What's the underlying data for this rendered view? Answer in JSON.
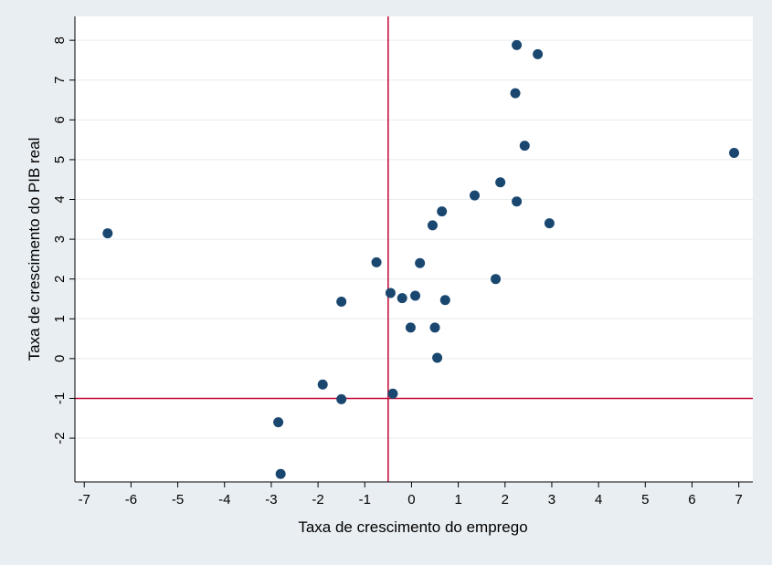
{
  "chart_data": {
    "type": "scatter",
    "title": "",
    "xlabel": "Taxa de crescimento do emprego",
    "ylabel": "Taxa de crescimento do PIB real",
    "xlim": [
      -7.2,
      7.3
    ],
    "ylim": [
      -3.1,
      8.6
    ],
    "xticks": [
      -7,
      -6,
      -5,
      -4,
      -3,
      -2,
      -1,
      0,
      1,
      2,
      3,
      4,
      5,
      6,
      7
    ],
    "yticks": [
      -2,
      -1,
      0,
      1,
      2,
      3,
      4,
      5,
      6,
      7,
      8
    ],
    "grid": "horizontal",
    "point_color": "#1a476f",
    "reference_line_color": "#c10534",
    "reference_lines": {
      "x": -0.5,
      "y": -1.0
    },
    "points": [
      {
        "x": -6.5,
        "y": 3.15
      },
      {
        "x": -2.85,
        "y": -1.6
      },
      {
        "x": -2.8,
        "y": -2.9
      },
      {
        "x": -1.9,
        "y": -0.65
      },
      {
        "x": -1.5,
        "y": 1.43
      },
      {
        "x": -1.5,
        "y": -1.02
      },
      {
        "x": -0.75,
        "y": 2.42
      },
      {
        "x": -0.45,
        "y": 1.65
      },
      {
        "x": -0.4,
        "y": -0.88
      },
      {
        "x": -0.2,
        "y": 1.52
      },
      {
        "x": -0.02,
        "y": 0.78
      },
      {
        "x": 0.08,
        "y": 1.58
      },
      {
        "x": 0.18,
        "y": 2.4
      },
      {
        "x": 0.45,
        "y": 3.35
      },
      {
        "x": 0.5,
        "y": 0.78
      },
      {
        "x": 0.55,
        "y": 0.02
      },
      {
        "x": 0.65,
        "y": 3.7
      },
      {
        "x": 0.72,
        "y": 1.47
      },
      {
        "x": 1.35,
        "y": 4.1
      },
      {
        "x": 1.8,
        "y": 2.0
      },
      {
        "x": 1.9,
        "y": 4.43
      },
      {
        "x": 2.22,
        "y": 6.67
      },
      {
        "x": 2.25,
        "y": 7.88
      },
      {
        "x": 2.25,
        "y": 3.95
      },
      {
        "x": 2.42,
        "y": 5.35
      },
      {
        "x": 2.7,
        "y": 7.65
      },
      {
        "x": 2.95,
        "y": 3.4
      },
      {
        "x": 6.9,
        "y": 5.17
      }
    ]
  }
}
